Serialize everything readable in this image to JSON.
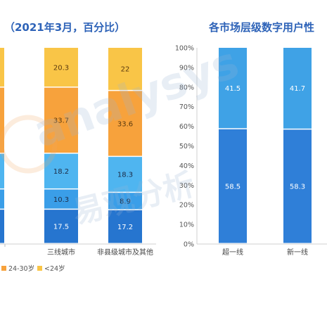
{
  "titles": {
    "left": "（2021年3月，百分比）",
    "right": "各市场层级数字用户性"
  },
  "watermark": {
    "latin": "analysys",
    "cjk": "易观分析"
  },
  "chart_data": [
    {
      "type": "bar",
      "stacked": true,
      "categories": [
        "三线城市",
        "非县级城市及其他"
      ],
      "series": [
        {
          "name": "",
          "values": [
            17.5,
            17.2
          ],
          "color": "#2675cf"
        },
        {
          "name": "",
          "values": [
            10.3,
            8.9
          ],
          "color": "#3a9ee8"
        },
        {
          "name": "",
          "values": [
            18.2,
            18.3
          ],
          "color": "#4fb5f0"
        },
        {
          "name": "24-30岁",
          "values": [
            33.7,
            33.6
          ],
          "color": "#f7a23c"
        },
        {
          "name": "<24岁",
          "values": [
            20.3,
            22
          ],
          "color": "#f9c547"
        }
      ],
      "legend": [
        "24-30岁",
        "<24岁"
      ],
      "legend_position": "bottom"
    },
    {
      "type": "bar",
      "stacked": true,
      "categories": [
        "超一线",
        "新一线"
      ],
      "series": [
        {
          "name": "",
          "values": [
            58.5,
            58.3
          ],
          "color": "#2f7fd8"
        },
        {
          "name": "",
          "values": [
            41.5,
            41.7
          ],
          "color": "#3fa2e6"
        }
      ],
      "yticks": [
        "0%",
        "10%",
        "20%",
        "30%",
        "40%",
        "50%",
        "60%",
        "70%",
        "80%",
        "90%",
        "100%"
      ],
      "ylim": [
        0,
        100
      ]
    }
  ]
}
